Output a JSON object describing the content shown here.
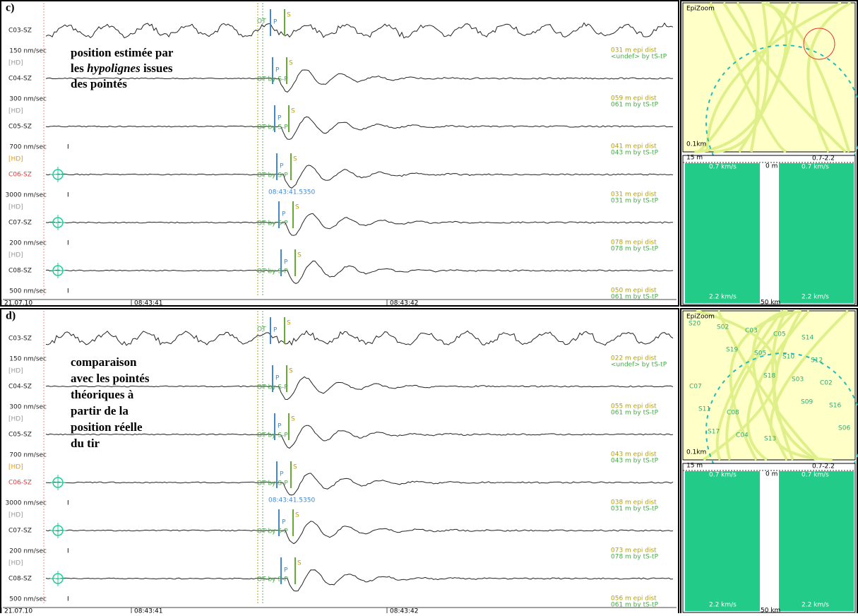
{
  "panels": [
    {
      "label": "c)",
      "annotation": [
        [
          "position estimée par"
        ],
        [
          "les ",
          "hypolignes",
          " issues"
        ],
        [
          "des pointés"
        ]
      ],
      "time_labels": [
        "21.07.10",
        "08:43:41",
        "08:43:42"
      ],
      "traces": [
        {
          "station": "C03-SZ",
          "scale": "150 nm/sec",
          "ot": "OT",
          "picks": [
            "P",
            "S"
          ],
          "dist": [
            "031 m  epi dist",
            "<undef>  by tS-tP"
          ]
        },
        {
          "station": "C04-SZ",
          "hd": "[HD]",
          "scale": "300 nm/sec",
          "ot": "OT by S-P",
          "picks": [
            "P",
            "S"
          ],
          "dist": [
            "059 m  epi dist",
            "061 m  by tS-tP"
          ]
        },
        {
          "station": "C05-SZ",
          "hd": "[HD]",
          "scale": "700 nm/sec",
          "marker": "I",
          "ot": "OT by S-P",
          "picks": [
            "P",
            "S"
          ],
          "dist": [
            "041 m  epi dist",
            "043 m  by tS-tP"
          ]
        },
        {
          "station": "C06-SZ",
          "hd": "[HD]",
          "scale": "3000 nm/sec",
          "marker": "I",
          "ot": "OT by S-P",
          "picks": [
            "P",
            "S"
          ],
          "time": "08:43:41.5350",
          "dist": [
            "031 m  epi dist",
            "031 m  by tS-tP"
          ]
        },
        {
          "station": "C07-SZ",
          "hd": "[HD]",
          "scale": "200 nm/sec",
          "marker": "I",
          "ot": "OT by S-P",
          "picks": [
            "P",
            "S"
          ],
          "dist": [
            "078 m  epi dist",
            "078 m  by tS-tP"
          ]
        },
        {
          "station": "C08-SZ",
          "hd": "[HD]",
          "scale": "500 nm/sec",
          "marker": "I",
          "ot": "OT by S-P",
          "picks": [
            "P",
            "S"
          ],
          "dist": [
            "050 m  epi dist",
            "061 m  by tS-tP"
          ]
        }
      ],
      "map": {
        "title": "EpiZoom",
        "scale": "0.1km",
        "stations": []
      },
      "section": {
        "top_left": "15 m",
        "center": "0 m",
        "top_right": "0.7-2.2",
        "upper": [
          "0.7 km/s",
          "0.7 km/s"
        ],
        "lower": [
          "2.2 km/s",
          "2.2 km/s"
        ],
        "bottom": "50 km"
      }
    },
    {
      "label": "d)",
      "annotation": [
        [
          "comparaison"
        ],
        [
          "avec les pointés"
        ],
        [
          "théoriques à"
        ],
        [
          "partir de la"
        ],
        [
          "position réelle"
        ],
        [
          "du tir"
        ]
      ],
      "time_labels": [
        "21.07.10",
        "08:43:41",
        "08:43:42"
      ],
      "traces": [
        {
          "station": "C03-SZ",
          "scale": "150 nm/sec",
          "ot": "OT",
          "picks": [
            "P",
            "S"
          ],
          "dist": [
            "022 m  epi dist",
            "<undef>  by tS-tP"
          ]
        },
        {
          "station": "C04-SZ",
          "hd": "[HD]",
          "scale": "300 nm/sec",
          "ot": "OT by S-P",
          "picks": [
            "P",
            "S"
          ],
          "dist": [
            "055 m  epi dist",
            "061 m  by tS-tP"
          ]
        },
        {
          "station": "C05-SZ",
          "hd": "[HD]",
          "scale": "700 nm/sec",
          "ot": "OT by S-P",
          "picks": [
            "P",
            "S"
          ],
          "dist": [
            "043 m  epi dist",
            "043 m  by tS-tP"
          ]
        },
        {
          "station": "C06-SZ",
          "hd": "[HD]",
          "scale": "3000 nm/sec",
          "marker": "I",
          "ot": "OT by S-P",
          "picks": [
            "P",
            "S"
          ],
          "time": "08:43:41.5350",
          "dist": [
            "038 m  epi dist",
            "031 m  by tS-tP"
          ]
        },
        {
          "station": "C07-SZ",
          "hd": "[HD]",
          "scale": "200 nm/sec",
          "marker": "I",
          "ot": "OT by S-P",
          "picks": [
            "P",
            "S"
          ],
          "dist": [
            "073 m  epi dist",
            "078 m  by tS-tP"
          ]
        },
        {
          "station": "C08-SZ",
          "hd": "[HD]",
          "scale": "500 nm/sec",
          "marker": "I",
          "ot": "OT by S-P",
          "picks": [
            "P",
            "S"
          ],
          "dist": [
            "056 m  epi dist",
            "061 m  by tS-tP"
          ]
        }
      ],
      "map": {
        "title": "EpiZoom",
        "scale": "0.1km",
        "stations": [
          "S20",
          "S19",
          "S18",
          "S09",
          "S06",
          "S02",
          "S05",
          "S03",
          "S16",
          "S17",
          "C03",
          "S10",
          "C02",
          "S11",
          "C04",
          "C05",
          "S12",
          "C07",
          "C08",
          "S13",
          "S14"
        ]
      },
      "section": {
        "top_left": "15 m",
        "center": "0 m",
        "top_right": "0.7-2.2",
        "upper": [
          "0.7 km/s",
          "0.7 km/s"
        ],
        "lower": [
          "2.2 km/s",
          "2.2 km/s"
        ],
        "bottom": "50 km"
      }
    }
  ]
}
